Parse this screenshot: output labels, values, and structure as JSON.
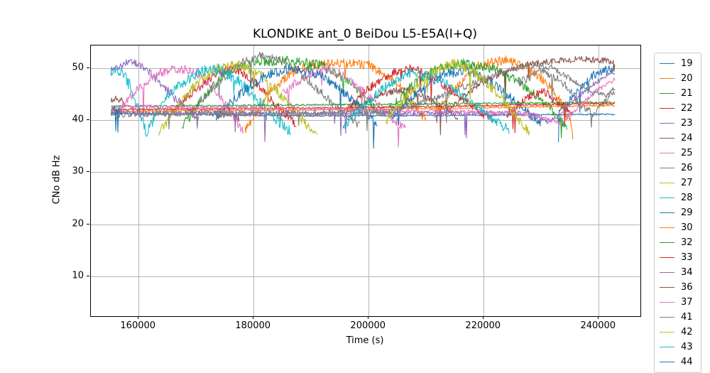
{
  "chart_data": {
    "type": "line",
    "title": "KLONDIKE ant_0 BeiDou L5-E5A(I+Q)",
    "xlabel": "Time (s)",
    "ylabel": "CNo dB Hz",
    "xlim": [
      151700,
      247250
    ],
    "ylim": [
      2.4,
      54.3
    ],
    "xticks": [
      160000,
      180000,
      200000,
      220000,
      240000
    ],
    "yticks": [
      10,
      20,
      30,
      40,
      50
    ],
    "grid": true,
    "grid_color": "#b4b4b4",
    "spine_color": "#000000",
    "legend_position": "outside-right",
    "legend_note": "legend continues below figure edge; last entry clipped",
    "time_range_s": [
      155200,
      242800
    ],
    "cno_band_dbhz": [
      36.5,
      52.3
    ],
    "series": [
      {
        "name": "19",
        "color": "#1f77b4",
        "noise": 0.15,
        "segments": [
          [
            [
              155200,
              41.3
            ],
            [
              190000,
              40.8
            ],
            [
              215000,
              40.9
            ],
            [
              242800,
              41.1
            ]
          ]
        ]
      },
      {
        "name": "20",
        "color": "#ff7f0e",
        "noise": 0.9,
        "segments": [
          [
            [
              178500,
              38
            ],
            [
              183000,
              46
            ],
            [
              188000,
              50
            ],
            [
              194000,
              51
            ],
            [
              200000,
              50.5
            ],
            [
              205000,
              47
            ],
            [
              208500,
              42
            ],
            [
              210000,
              40
            ]
          ],
          [
            [
              211500,
              41
            ],
            [
              215000,
              46
            ],
            [
              219000,
              50.5
            ],
            [
              224000,
              51.5
            ],
            [
              228000,
              50
            ],
            [
              232000,
              46
            ],
            [
              235000,
              40
            ],
            [
              235600,
              36.5
            ]
          ]
        ]
      },
      {
        "name": "21",
        "color": "#2ca02c",
        "noise": 0.9,
        "segments": [
          [
            [
              167500,
              38.5
            ],
            [
              171000,
              44
            ],
            [
              175000,
              49
            ],
            [
              180000,
              51
            ],
            [
              186000,
              51.5
            ],
            [
              192000,
              50.5
            ],
            [
              197000,
              47
            ],
            [
              200500,
              43
            ],
            [
              202000,
              41
            ]
          ],
          [
            [
              203500,
              42
            ],
            [
              207000,
              46
            ],
            [
              211000,
              49.5
            ],
            [
              216000,
              51
            ],
            [
              221000,
              50
            ],
            [
              226000,
              47.5
            ],
            [
              230000,
              44
            ],
            [
              233500,
              40
            ],
            [
              234500,
              38.5
            ]
          ]
        ]
      },
      {
        "name": "22",
        "color": "#d62728",
        "noise": 0.85,
        "segments": [
          [
            [
              165500,
              41
            ],
            [
              169500,
              45.5
            ],
            [
              173000,
              48.5
            ],
            [
              176500,
              50
            ],
            [
              180000,
              47.5
            ],
            [
              183000,
              44
            ],
            [
              186000,
              40.5
            ],
            [
              187500,
              39
            ]
          ],
          [
            [
              196000,
              41.5
            ],
            [
              200000,
              46
            ],
            [
              204000,
              49
            ],
            [
              208000,
              50
            ],
            [
              212000,
              47.5
            ],
            [
              216000,
              44.5
            ],
            [
              219500,
              41.5
            ],
            [
              221500,
              40
            ]
          ],
          [
            [
              224000,
              41
            ],
            [
              227500,
              44.5
            ],
            [
              230500,
              45.5
            ],
            [
              233500,
              43
            ],
            [
              235500,
              41
            ]
          ]
        ]
      },
      {
        "name": "23",
        "color": "#9467bd",
        "noise": 0.85,
        "segments": [
          [
            [
              155200,
              49.3
            ],
            [
              158000,
              51
            ],
            [
              160500,
              50.5
            ],
            [
              163000,
              48
            ],
            [
              166000,
              44.5
            ],
            [
              169000,
              41.5
            ],
            [
              170500,
              40
            ]
          ]
        ]
      },
      {
        "name": "24",
        "color": "#8c564b",
        "noise": 0.7,
        "segments": [
          [
            [
              155200,
              43.8
            ],
            [
              156200,
              44.5
            ],
            [
              157400,
              43.2
            ]
          ],
          [
            [
              173500,
              40.5
            ],
            [
              176000,
              41.5
            ],
            [
              177500,
              40
            ]
          ],
          [
            [
              197000,
              42
            ],
            [
              202000,
              45
            ],
            [
              206500,
              46
            ],
            [
              210500,
              44
            ],
            [
              213500,
              42
            ],
            [
              215500,
              40.5
            ]
          ]
        ]
      },
      {
        "name": "25",
        "color": "#e377c2",
        "noise": 0.9,
        "segments": [
          [
            [
              155800,
              40.5
            ],
            [
              159000,
              45
            ],
            [
              162500,
              48.5
            ],
            [
              166000,
              50
            ],
            [
              169500,
              49.5
            ],
            [
              173000,
              46
            ],
            [
              176000,
              41.5
            ],
            [
              178300,
              37.5
            ]
          ],
          [
            [
              185000,
              45
            ],
            [
              189000,
              48.5
            ],
            [
              193000,
              50
            ],
            [
              197000,
              47.5
            ],
            [
              201000,
              43.5
            ],
            [
              204500,
              40
            ],
            [
              206500,
              38.5
            ]
          ]
        ]
      },
      {
        "name": "26",
        "color": "#7f7f7f",
        "noise": 0.8,
        "segments": [
          [
            [
              170500,
              43.5
            ],
            [
              174000,
              47.5
            ],
            [
              178000,
              51
            ],
            [
              181000,
              52.3
            ],
            [
              184500,
              51.5
            ],
            [
              188000,
              49
            ],
            [
              192000,
              45
            ],
            [
              196000,
              41
            ],
            [
              198500,
              38.8
            ]
          ],
          [
            [
              226000,
              47
            ],
            [
              230000,
              49.5
            ],
            [
              233500,
              47.5
            ],
            [
              236500,
              43.5
            ],
            [
              239000,
              41
            ],
            [
              241000,
              43.5
            ],
            [
              242800,
              46
            ]
          ]
        ]
      },
      {
        "name": "27",
        "color": "#bcbd22",
        "noise": 0.95,
        "segments": [
          [
            [
              163500,
              37.5
            ],
            [
              166500,
              42
            ],
            [
              170000,
              47
            ],
            [
              173500,
              50
            ],
            [
              177500,
              50.5
            ],
            [
              181500,
              48.5
            ],
            [
              185000,
              44.5
            ],
            [
              188500,
              40
            ],
            [
              191000,
              36.8
            ]
          ]
        ]
      },
      {
        "name": "28",
        "color": "#17becf",
        "noise": 1.1,
        "segments": [
          [
            [
              155200,
              49.8
            ],
            [
              157000,
              49.3
            ],
            [
              158500,
              46.5
            ],
            [
              160200,
              41.5
            ],
            [
              161300,
              37.5
            ],
            [
              163000,
              41
            ],
            [
              165000,
              44.5
            ],
            [
              168000,
              47.5
            ],
            [
              171000,
              49.3
            ],
            [
              174000,
              49.8
            ],
            [
              177500,
              47.5
            ],
            [
              181000,
              43.5
            ],
            [
              184000,
              40
            ],
            [
              186500,
              37.8
            ]
          ]
        ]
      },
      {
        "name": "29",
        "color": "#1f77b4",
        "noise": 0.9,
        "segments": [
          [
            [
              173500,
              40.5
            ],
            [
              177500,
              45
            ],
            [
              182000,
              48.5
            ],
            [
              187000,
              50
            ],
            [
              192000,
              48.5
            ],
            [
              196000,
              45
            ],
            [
              199500,
              41.5
            ],
            [
              201500,
              39.5
            ]
          ],
          [
            [
              204000,
              40.5
            ],
            [
              208000,
              45
            ],
            [
              212500,
              48.5
            ],
            [
              217000,
              49.5
            ],
            [
              221000,
              47.5
            ],
            [
              225000,
              44
            ],
            [
              228000,
              41
            ],
            [
              230000,
              39.5
            ]
          ],
          [
            [
              233000,
              41
            ],
            [
              236500,
              46
            ],
            [
              239500,
              49
            ],
            [
              242800,
              50
            ]
          ]
        ]
      },
      {
        "name": "30",
        "color": "#ff7f0e",
        "noise": 0.18,
        "segments": [
          [
            [
              155200,
              41.7
            ],
            [
              200000,
              42.0
            ],
            [
              242800,
              42.8
            ]
          ]
        ]
      },
      {
        "name": "32",
        "color": "#2ca02c",
        "noise": 0.18,
        "segments": [
          [
            [
              155200,
              42.6
            ],
            [
              200000,
              43.0
            ],
            [
              242800,
              43.4
            ]
          ]
        ]
      },
      {
        "name": "33",
        "color": "#d62728",
        "noise": 0.18,
        "segments": [
          [
            [
              155200,
              42.0
            ],
            [
              200000,
              42.4
            ],
            [
              242800,
              43.2
            ]
          ]
        ]
      },
      {
        "name": "34",
        "color": "#9467bd",
        "noise": 0.5,
        "segments": [
          [
            [
              155200,
              41.4
            ],
            [
              200000,
              41.2
            ],
            [
              228000,
              41.3
            ],
            [
              231500,
              39.5
            ],
            [
              234500,
              42.5
            ],
            [
              238000,
              46
            ],
            [
              241000,
              48.3
            ],
            [
              242800,
              49
            ]
          ]
        ]
      },
      {
        "name": "36",
        "color": "#8c564b",
        "noise": 0.6,
        "segments": [
          [
            [
              213500,
              41.5
            ],
            [
              217500,
              45.5
            ],
            [
              222000,
              48.5
            ],
            [
              227000,
              50.5
            ],
            [
              232000,
              51.3
            ],
            [
              237000,
              51.7
            ],
            [
              241000,
              51.4
            ],
            [
              242800,
              51.2
            ]
          ]
        ]
      },
      {
        "name": "37",
        "color": "#e377c2",
        "noise": 0.4,
        "segments": [
          [
            [
              155200,
              42.6
            ],
            [
              190000,
              42.2
            ],
            [
              225000,
              41.4
            ],
            [
              230000,
              40.5
            ],
            [
              233500,
              39.3
            ],
            [
              236500,
              42.5
            ],
            [
              239500,
              45.5
            ],
            [
              242800,
              47.8
            ]
          ]
        ]
      },
      {
        "name": "41",
        "color": "#7f7f7f",
        "noise": 0.6,
        "segments": [
          [
            [
              155200,
              41.1
            ],
            [
              190000,
              41.3
            ],
            [
              202000,
              41.6
            ],
            [
              208000,
              42.8
            ],
            [
              213000,
              44.8
            ],
            [
              218000,
              47
            ],
            [
              223000,
              49.2
            ],
            [
              228000,
              50.6
            ],
            [
              232000,
              50
            ],
            [
              235500,
              47.5
            ],
            [
              238500,
              45.5
            ],
            [
              241000,
              44.8
            ],
            [
              242800,
              45.2
            ]
          ]
        ]
      },
      {
        "name": "42",
        "color": "#bcbd22",
        "noise": 0.95,
        "segments": [
          [
            [
              203000,
              40
            ],
            [
              207000,
              45
            ],
            [
              211000,
              49
            ],
            [
              214500,
              51
            ],
            [
              218000,
              49.5
            ],
            [
              222000,
              45.5
            ],
            [
              225500,
              41
            ],
            [
              228000,
              37.5
            ]
          ]
        ]
      },
      {
        "name": "43",
        "color": "#17becf",
        "noise": 0.9,
        "segments": [
          [
            [
              195500,
              38.5
            ],
            [
              199000,
              42.5
            ],
            [
              203000,
              46.5
            ],
            [
              207000,
              49
            ],
            [
              211000,
              48.5
            ],
            [
              215000,
              46
            ],
            [
              219000,
              42.5
            ],
            [
              222500,
              39.5
            ],
            [
              224500,
              38
            ]
          ]
        ]
      },
      {
        "name": "44",
        "color": "#1f77b4",
        "noise": 0.5,
        "segments": [
          [
            [
              155200,
              41.8
            ],
            [
              156000,
              42.4
            ],
            [
              157200,
              41.2
            ]
          ]
        ]
      }
    ]
  }
}
